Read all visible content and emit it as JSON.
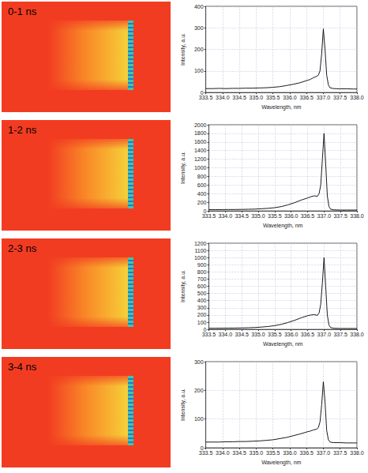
{
  "chart_data": [
    {
      "type": "line",
      "title": "0-1 ns",
      "xlabel": "Wavelength, nm",
      "ylabel": "Intensity, a.u.",
      "color": "#000000",
      "grid": true,
      "xlim": [
        333.5,
        338.0
      ],
      "xticks": [
        333.5,
        {
          "value": 334,
          "label": "334.0"
        },
        334.5,
        {
          "value": 335,
          "label": "335.0"
        },
        335.5,
        {
          "value": 336,
          "label": "336.0"
        },
        336.5,
        {
          "value": 337,
          "label": "337.0"
        },
        337.5,
        {
          "value": 338,
          "label": "338.0"
        }
      ],
      "ylim": [
        0,
        400
      ],
      "yticks": [
        0,
        100,
        200,
        300,
        400
      ],
      "x": [
        333.5,
        333.7,
        333.9,
        334.1,
        334.3,
        334.5,
        334.7,
        334.9,
        335.1,
        335.3,
        335.5,
        335.7,
        335.9,
        336.1,
        336.3,
        336.5,
        336.6,
        336.7,
        336.8,
        336.85,
        336.9,
        336.95,
        337.0,
        337.05,
        337.1,
        337.15,
        337.2,
        337.3,
        337.5,
        337.7,
        337.9,
        338.0
      ],
      "values": [
        18,
        18,
        19,
        18,
        19,
        19,
        20,
        20,
        21,
        22,
        24,
        27,
        32,
        38,
        45,
        55,
        60,
        68,
        75,
        80,
        100,
        180,
        295,
        200,
        80,
        35,
        22,
        18,
        17,
        17,
        16,
        16
      ]
    },
    {
      "type": "line",
      "title": "1-2 ns",
      "xlabel": "Wavelength, nm",
      "ylabel": "Intensity, a.u.",
      "color": "#000000",
      "grid": true,
      "xlim": [
        333.5,
        338.0
      ],
      "xticks": [
        333.5,
        {
          "value": 334,
          "label": "334.0"
        },
        334.5,
        {
          "value": 335,
          "label": "335.0"
        },
        335.5,
        {
          "value": 336,
          "label": "336.0"
        },
        336.5,
        {
          "value": 337,
          "label": "337.0"
        },
        337.5,
        {
          "value": 338,
          "label": "338.0"
        }
      ],
      "ylim": [
        0,
        2000
      ],
      "yticks": [
        0,
        200,
        400,
        600,
        800,
        1000,
        1200,
        1400,
        1600,
        1800,
        2000
      ],
      "x": [
        333.5,
        333.7,
        333.9,
        334.1,
        334.3,
        334.5,
        334.7,
        334.9,
        335.1,
        335.3,
        335.5,
        335.7,
        335.9,
        336.1,
        336.3,
        336.5,
        336.6,
        336.7,
        336.8,
        336.85,
        336.9,
        336.95,
        337.0,
        337.05,
        337.1,
        337.15,
        337.2,
        337.3,
        337.5,
        337.7,
        337.9,
        338.0
      ],
      "values": [
        30,
        30,
        31,
        32,
        33,
        35,
        38,
        42,
        50,
        60,
        75,
        100,
        140,
        190,
        250,
        300,
        330,
        350,
        340,
        400,
        600,
        1200,
        1800,
        1100,
        350,
        100,
        40,
        25,
        20,
        20,
        20,
        20
      ]
    },
    {
      "type": "line",
      "title": "2-3 ns",
      "xlabel": "Wavelength, nm",
      "ylabel": "Intensity, a.u.",
      "color": "#000000",
      "grid": true,
      "xlim": [
        333.5,
        338.0
      ],
      "xticks": [
        333.5,
        {
          "value": 334,
          "label": "334.0"
        },
        334.5,
        {
          "value": 335,
          "label": "335.0"
        },
        335.5,
        {
          "value": 336,
          "label": "336.0"
        },
        336.5,
        {
          "value": 337,
          "label": "337.0"
        },
        337.5,
        {
          "value": 338,
          "label": "338.0"
        }
      ],
      "ylim": [
        0,
        1200
      ],
      "yticks": [
        0,
        100,
        200,
        300,
        400,
        500,
        600,
        700,
        800,
        900,
        1000,
        1100,
        1200
      ],
      "x": [
        333.5,
        333.7,
        333.9,
        334.1,
        334.3,
        334.5,
        334.7,
        334.9,
        335.1,
        335.3,
        335.5,
        335.7,
        335.9,
        336.1,
        336.3,
        336.5,
        336.6,
        336.7,
        336.8,
        336.85,
        336.9,
        336.95,
        337.0,
        337.05,
        337.1,
        337.15,
        337.2,
        337.3,
        337.5,
        337.7,
        337.9,
        338.0
      ],
      "values": [
        15,
        15,
        16,
        17,
        18,
        20,
        22,
        26,
        32,
        40,
        52,
        70,
        95,
        125,
        160,
        190,
        200,
        205,
        195,
        230,
        350,
        650,
        1000,
        600,
        200,
        60,
        25,
        15,
        12,
        12,
        12,
        12
      ]
    },
    {
      "type": "line",
      "title": "3-4 ns",
      "xlabel": "Wavelength, nm",
      "ylabel": "Intensity, a.u.",
      "color": "#000000",
      "grid": true,
      "xlim": [
        333.5,
        338.0
      ],
      "xticks": [
        333.5,
        {
          "value": 334,
          "label": "334.0"
        },
        334.5,
        {
          "value": 335,
          "label": "335.0"
        },
        335.5,
        {
          "value": 336,
          "label": "336.0"
        },
        336.5,
        {
          "value": 337,
          "label": "337.0"
        },
        337.5,
        {
          "value": 338,
          "label": "338.0"
        }
      ],
      "ylim": [
        0,
        300
      ],
      "yticks": [
        0,
        100,
        200,
        300
      ],
      "x": [
        333.5,
        333.7,
        333.9,
        334.1,
        334.3,
        334.5,
        334.7,
        334.9,
        335.1,
        335.3,
        335.5,
        335.7,
        335.9,
        336.1,
        336.3,
        336.5,
        336.6,
        336.7,
        336.8,
        336.85,
        336.9,
        336.95,
        337.0,
        337.05,
        337.1,
        337.15,
        337.2,
        337.3,
        337.5,
        337.7,
        337.9,
        338.0
      ],
      "values": [
        20,
        20,
        20,
        21,
        21,
        22,
        22,
        23,
        24,
        26,
        28,
        32,
        36,
        42,
        48,
        55,
        58,
        62,
        65,
        70,
        90,
        150,
        230,
        160,
        60,
        28,
        20,
        18,
        18,
        17,
        17,
        17
      ]
    }
  ]
}
